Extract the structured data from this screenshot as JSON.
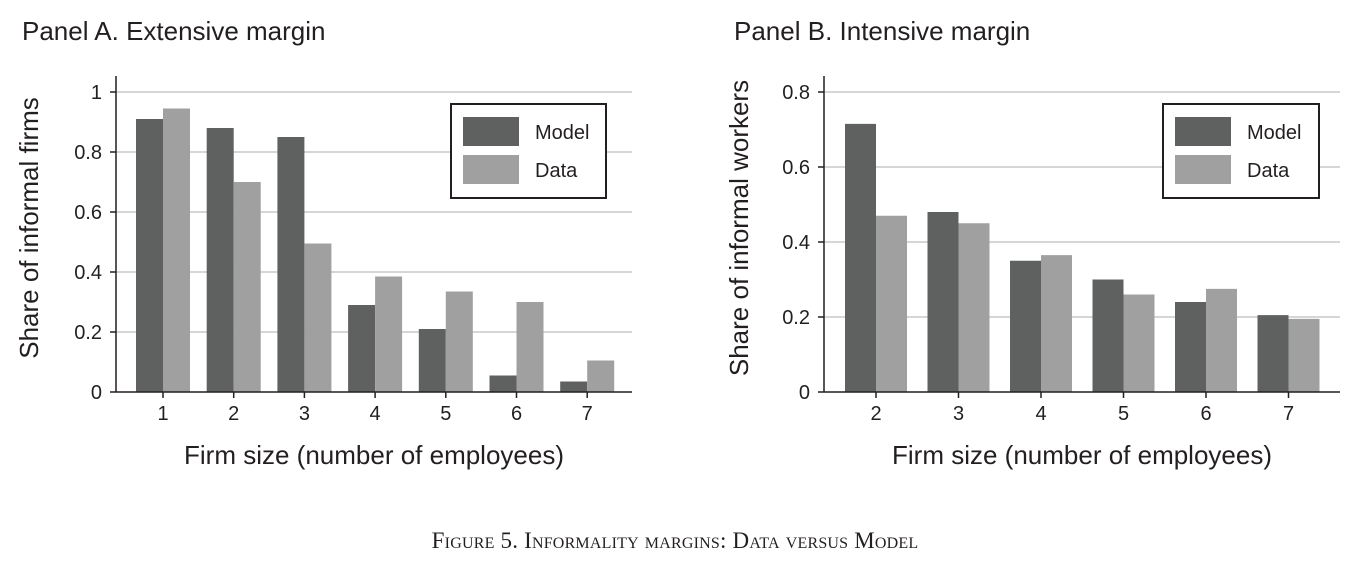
{
  "colors": {
    "model": "#5f6060",
    "data": "#a0a0a0",
    "grid": "#c8c8c8",
    "axis": "#231f20"
  },
  "chart_data": [
    {
      "type": "bar",
      "title": "Panel A. Extensive margin",
      "xlabel": "Firm size (number of employees)",
      "ylabel": "Share of informal firms",
      "categories": [
        "1",
        "2",
        "3",
        "4",
        "5",
        "6",
        "7"
      ],
      "series": [
        {
          "name": "Model",
          "values": [
            0.91,
            0.88,
            0.85,
            0.29,
            0.21,
            0.055,
            0.035
          ]
        },
        {
          "name": "Data",
          "values": [
            0.945,
            0.7,
            0.495,
            0.385,
            0.335,
            0.3,
            0.105
          ]
        }
      ],
      "ylim": [
        0,
        1
      ],
      "yticks": [
        "0",
        "0.2",
        "0.4",
        "0.6",
        "0.8",
        "1"
      ],
      "ytick_values": [
        0,
        0.2,
        0.4,
        0.6,
        0.8,
        1
      ],
      "grid": true,
      "legend": "top-right"
    },
    {
      "type": "bar",
      "title": "Panel B. Intensive margin",
      "xlabel": "Firm size (number of employees)",
      "ylabel": "Share of informal workers",
      "categories": [
        "2",
        "3",
        "4",
        "5",
        "6",
        "7"
      ],
      "series": [
        {
          "name": "Model",
          "values": [
            0.715,
            0.48,
            0.35,
            0.3,
            0.24,
            0.205
          ]
        },
        {
          "name": "Data",
          "values": [
            0.47,
            0.45,
            0.365,
            0.26,
            0.275,
            0.195
          ]
        }
      ],
      "ylim": [
        0,
        0.8
      ],
      "yticks": [
        "0",
        "0.2",
        "0.4",
        "0.6",
        "0.8"
      ],
      "ytick_values": [
        0,
        0.2,
        0.4,
        0.6,
        0.8
      ],
      "grid": true,
      "legend": "top-right"
    }
  ],
  "caption": "Figure 5. Informality margins: Data versus Model"
}
